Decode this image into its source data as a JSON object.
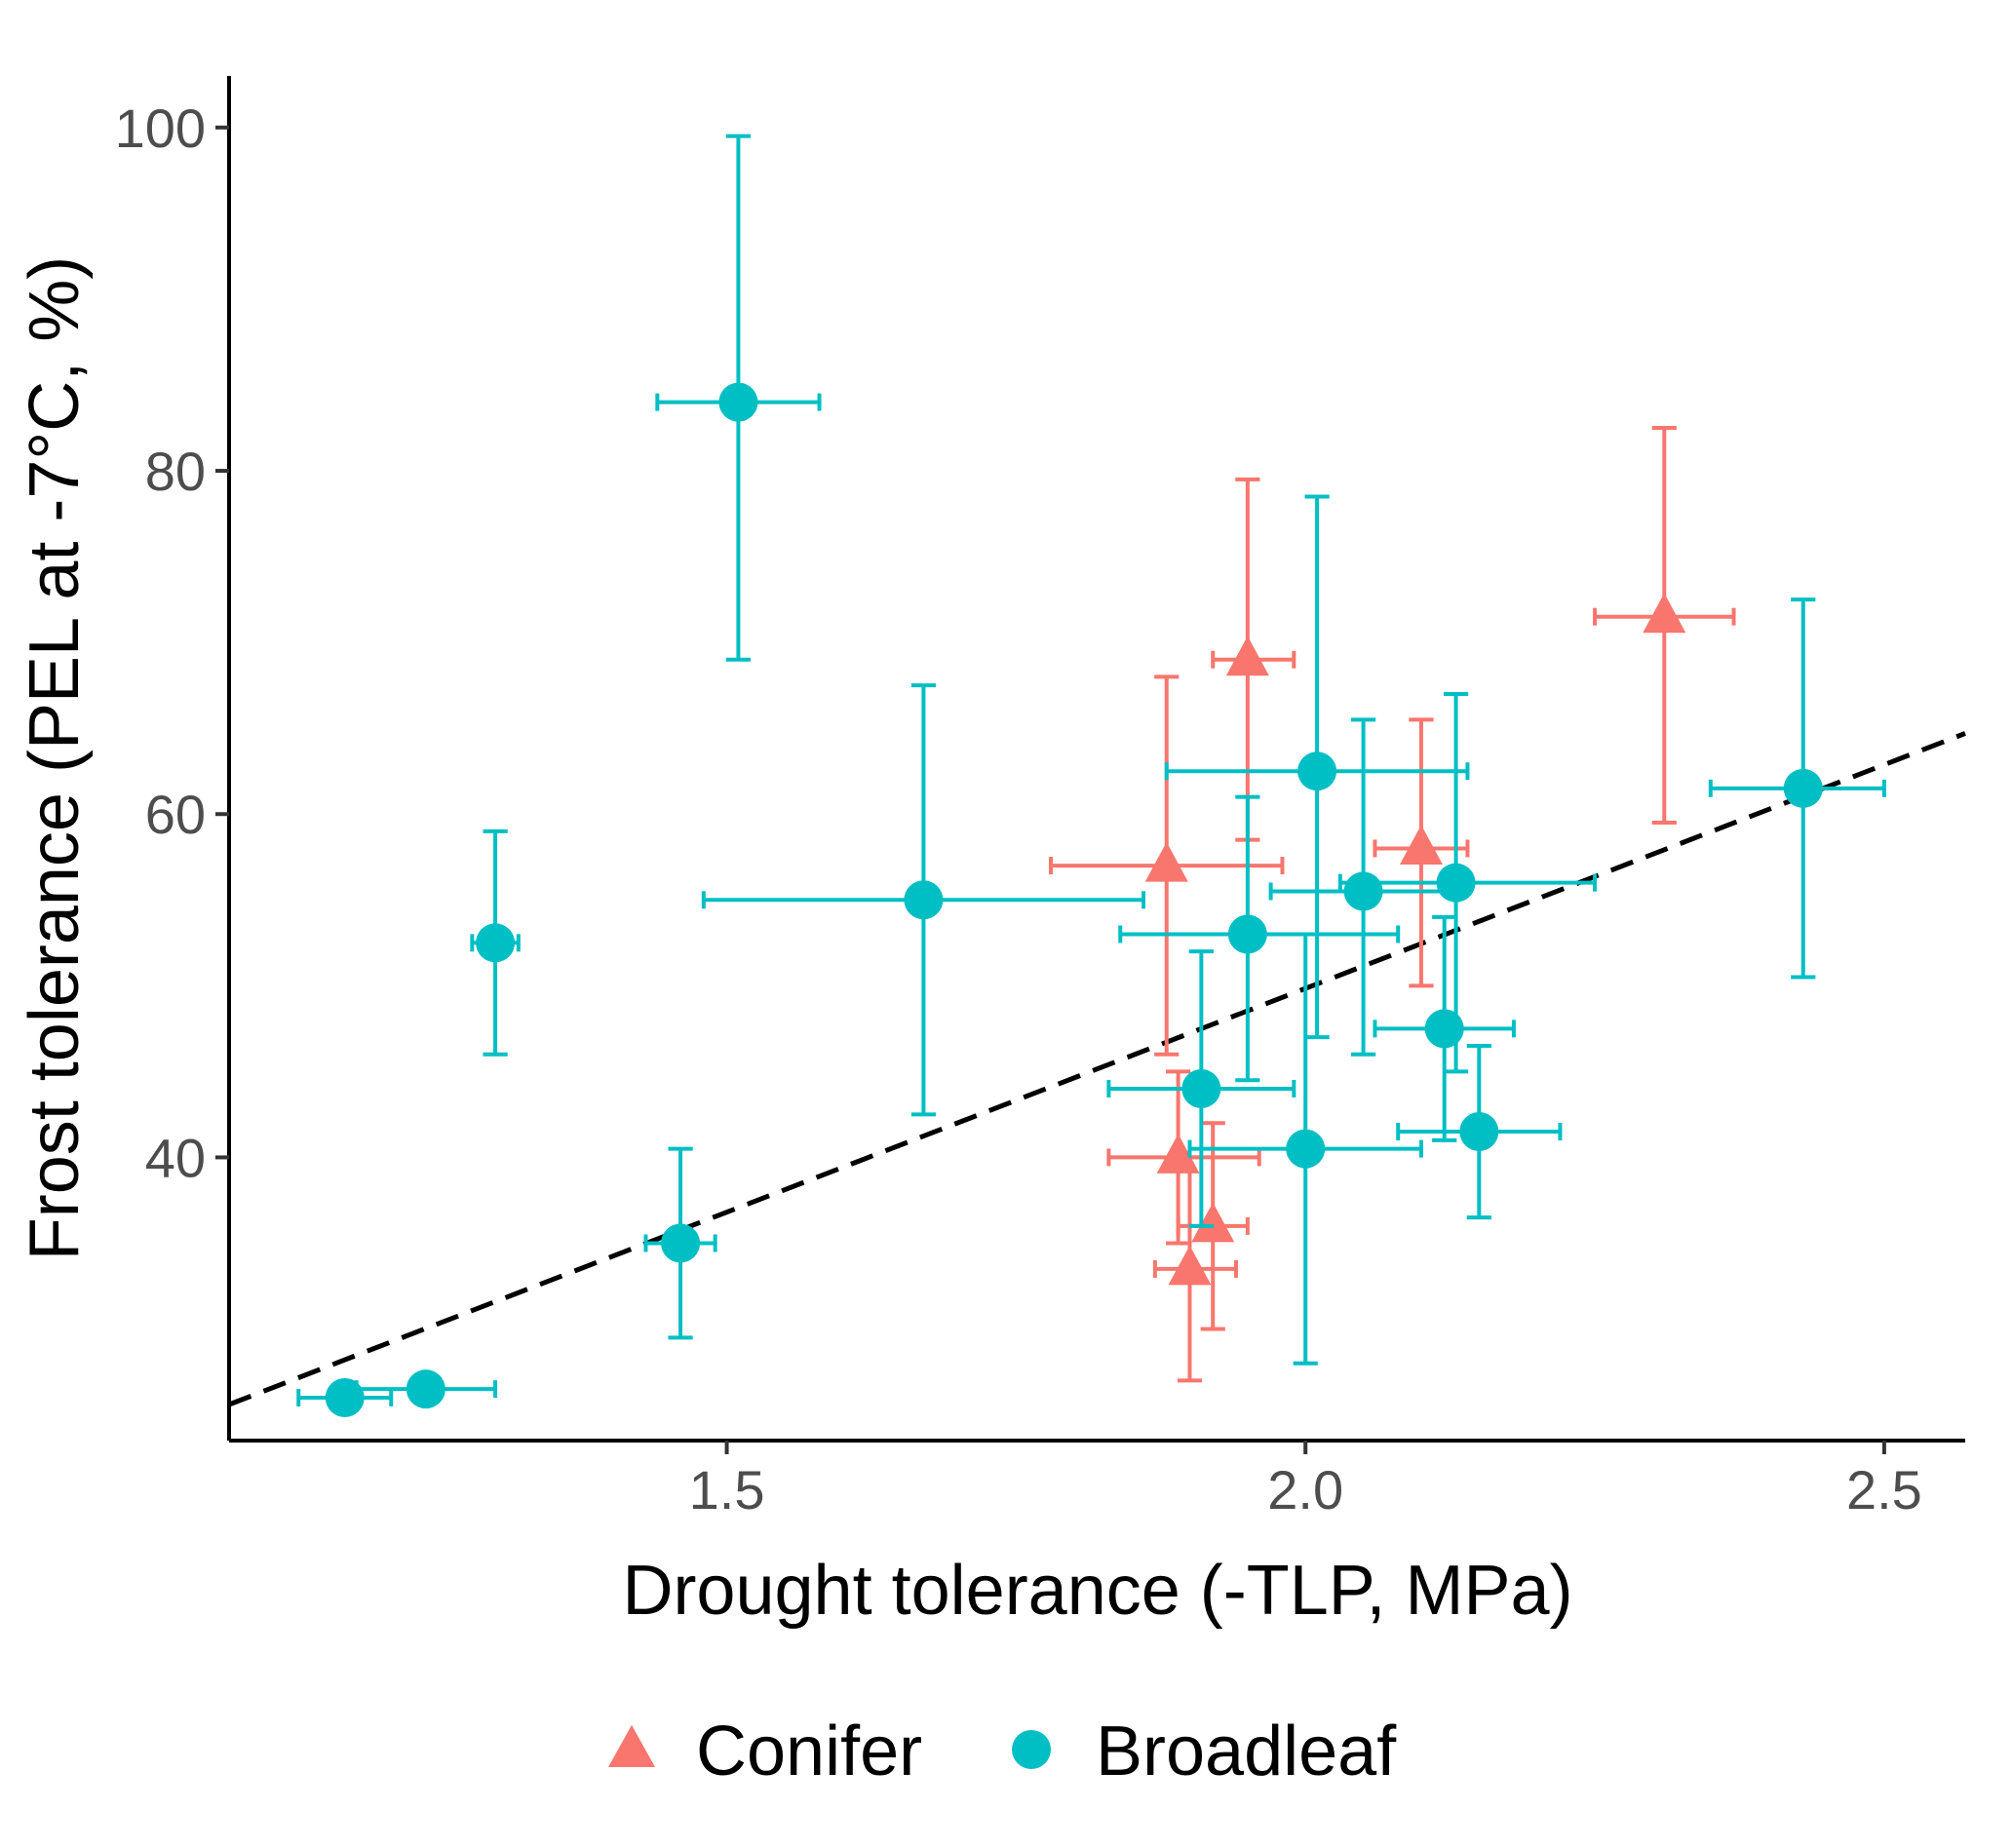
{
  "chart_data": {
    "type": "scatter",
    "xlabel": "Drought tolerance (-TLP, MPa)",
    "ylabel": "Frost tolerance (PEL at -7°C, %)",
    "xlim": [
      1.07,
      2.57
    ],
    "ylim": [
      23.5,
      103
    ],
    "xticks": [
      1.5,
      2.0,
      2.5
    ],
    "xtick_labels": [
      "1.5",
      "2.0",
      "2.5"
    ],
    "yticks": [
      40,
      60,
      80,
      100
    ],
    "ytick_labels": [
      "40",
      "60",
      "80",
      "100"
    ],
    "grid": false,
    "legend_position": "bottom",
    "trend_line": {
      "style": "dashed",
      "color": "#000000",
      "x": [
        1.07,
        2.57
      ],
      "y": [
        25.6,
        64.7
      ]
    },
    "series": [
      {
        "name": "Conifer",
        "marker": "triangle",
        "color": "#F8766D",
        "points": [
          {
            "x": 1.88,
            "y": 57.0,
            "xerr": [
              1.78,
              1.98
            ],
            "yerr": [
              46.0,
              68.0
            ]
          },
          {
            "x": 1.95,
            "y": 69.0,
            "xerr": [
              1.92,
              1.99
            ],
            "yerr": [
              58.5,
              79.5
            ]
          },
          {
            "x": 2.1,
            "y": 58.0,
            "xerr": [
              2.06,
              2.14
            ],
            "yerr": [
              50.0,
              65.5
            ]
          },
          {
            "x": 2.31,
            "y": 71.5,
            "xerr": [
              2.25,
              2.37
            ],
            "yerr": [
              59.5,
              82.5
            ]
          },
          {
            "x": 1.89,
            "y": 40.0,
            "xerr": [
              1.83,
              1.96
            ],
            "yerr": [
              35.0,
              45.0
            ]
          },
          {
            "x": 1.92,
            "y": 36.0,
            "xerr": [
              1.89,
              1.95
            ],
            "yerr": [
              30.0,
              42.0
            ]
          },
          {
            "x": 1.9,
            "y": 33.5,
            "xerr": [
              1.87,
              1.94
            ],
            "yerr": [
              27.0,
              40.0
            ]
          }
        ]
      },
      {
        "name": "Broadleaf",
        "marker": "circle",
        "color": "#00BFC4",
        "points": [
          {
            "x": 1.51,
            "y": 84.0,
            "xerr": [
              1.44,
              1.58
            ],
            "yerr": [
              69.0,
              99.5
            ]
          },
          {
            "x": 1.3,
            "y": 52.5,
            "xerr": [
              1.28,
              1.32
            ],
            "yerr": [
              46.0,
              59.0
            ]
          },
          {
            "x": 1.67,
            "y": 55.0,
            "xerr": [
              1.48,
              1.86
            ],
            "yerr": [
              42.5,
              67.5
            ]
          },
          {
            "x": 1.46,
            "y": 35.0,
            "xerr": [
              1.43,
              1.49
            ],
            "yerr": [
              29.5,
              40.5
            ]
          },
          {
            "x": 1.17,
            "y": 26.0,
            "xerr": [
              1.13,
              1.21
            ],
            "yerr": [
              25.5,
              26.5
            ]
          },
          {
            "x": 1.24,
            "y": 26.5,
            "xerr": [
              1.18,
              1.3
            ],
            "yerr": [
              26.0,
              27.0
            ]
          },
          {
            "x": 2.01,
            "y": 62.5,
            "xerr": [
              1.88,
              2.14
            ],
            "yerr": [
              47.0,
              78.5
            ]
          },
          {
            "x": 1.95,
            "y": 53.0,
            "xerr": [
              1.84,
              2.08
            ],
            "yerr": [
              44.5,
              61.0
            ]
          },
          {
            "x": 2.05,
            "y": 55.5,
            "xerr": [
              1.97,
              2.13
            ],
            "yerr": [
              46.0,
              65.5
            ]
          },
          {
            "x": 2.13,
            "y": 56.0,
            "xerr": [
              2.03,
              2.25
            ],
            "yerr": [
              45.0,
              67.0
            ]
          },
          {
            "x": 2.12,
            "y": 47.5,
            "xerr": [
              2.06,
              2.18
            ],
            "yerr": [
              41.0,
              54.0
            ]
          },
          {
            "x": 1.91,
            "y": 44.0,
            "xerr": [
              1.83,
              1.99
            ],
            "yerr": [
              36.0,
              52.0
            ]
          },
          {
            "x": 2.0,
            "y": 40.5,
            "xerr": [
              1.9,
              2.1
            ],
            "yerr": [
              28.0,
              53.0
            ]
          },
          {
            "x": 2.15,
            "y": 41.5,
            "xerr": [
              2.08,
              2.22
            ],
            "yerr": [
              36.5,
              46.5
            ]
          },
          {
            "x": 2.43,
            "y": 61.5,
            "xerr": [
              2.35,
              2.5
            ],
            "yerr": [
              50.5,
              72.5
            ]
          }
        ]
      }
    ]
  }
}
